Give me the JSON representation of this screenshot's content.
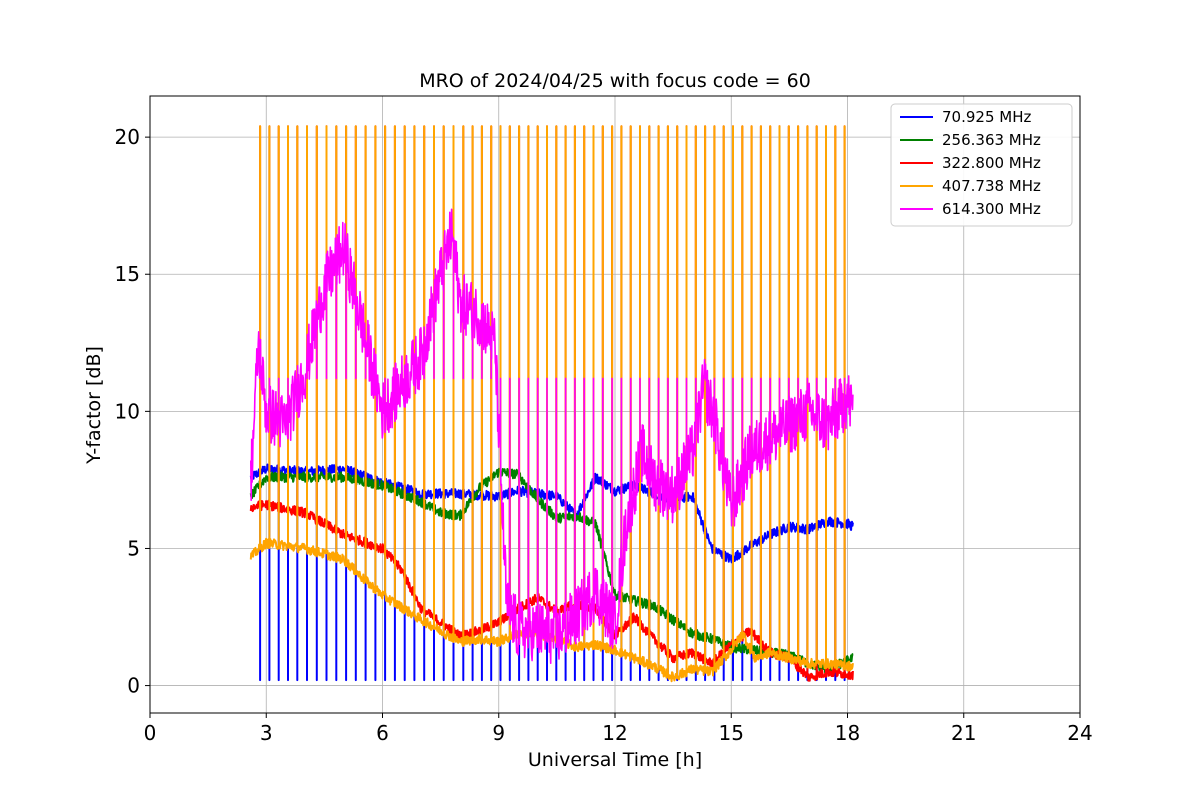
{
  "chart_data": {
    "type": "line",
    "title": "MRO of 2024/04/25 with focus code = 60",
    "xlabel": "Universal Time [h]",
    "ylabel": "Y-factor [dB]",
    "xlim": [
      0,
      24
    ],
    "ylim": [
      -1,
      21.5
    ],
    "xticks": [
      0,
      3,
      6,
      9,
      12,
      15,
      18,
      21,
      24
    ],
    "yticks": [
      0,
      5,
      10,
      15,
      20
    ],
    "grid": true,
    "legend_position": "top-right",
    "series": [
      {
        "name": " 70.925 MHz",
        "color": "#0000ff",
        "x": [
          2.6,
          3.0,
          4.0,
          5.0,
          6.0,
          7.0,
          8.0,
          9.0,
          9.5,
          10.0,
          10.5,
          11.0,
          11.5,
          12.0,
          12.5,
          13.0,
          13.5,
          14.0,
          14.5,
          15.0,
          15.5,
          16.0,
          16.5,
          17.0,
          17.5,
          18.0,
          18.15
        ],
        "y": [
          7.6,
          7.9,
          7.8,
          7.9,
          7.4,
          7.0,
          7.0,
          6.9,
          7.1,
          7.0,
          6.9,
          6.2,
          7.6,
          7.1,
          7.3,
          7.0,
          6.8,
          6.9,
          5.0,
          4.6,
          5.1,
          5.5,
          5.8,
          5.7,
          6.0,
          5.9,
          5.8
        ],
        "spikes_low": 0.2
      },
      {
        "name": " 256.363 MHz",
        "color": "#008000",
        "x": [
          2.6,
          3.0,
          4.0,
          5.0,
          6.0,
          7.0,
          7.5,
          8.0,
          8.5,
          9.0,
          9.5,
          10.0,
          10.5,
          11.0,
          11.5,
          12.0,
          12.5,
          13.0,
          13.5,
          14.0,
          14.5,
          15.0,
          15.5,
          16.0,
          16.5,
          17.0,
          17.5,
          18.15
        ],
        "y": [
          6.9,
          7.6,
          7.6,
          7.6,
          7.3,
          6.7,
          6.3,
          6.2,
          7.2,
          7.8,
          7.7,
          6.8,
          6.1,
          6.2,
          5.9,
          3.3,
          3.1,
          2.9,
          2.4,
          1.9,
          1.7,
          1.4,
          1.3,
          1.2,
          1.1,
          0.8,
          0.6,
          1.0
        ]
      },
      {
        "name": " 322.800 MHz",
        "color": "#ff0000",
        "x": [
          2.6,
          3.0,
          4.0,
          5.0,
          6.0,
          6.5,
          7.0,
          7.5,
          8.0,
          8.5,
          9.0,
          9.5,
          10.0,
          10.5,
          11.0,
          11.5,
          12.0,
          12.5,
          13.0,
          13.5,
          14.0,
          14.5,
          15.0,
          15.5,
          16.0,
          16.5,
          17.0,
          17.5,
          18.15
        ],
        "y": [
          6.5,
          6.6,
          6.3,
          5.5,
          5.0,
          4.2,
          2.8,
          2.3,
          1.8,
          2.0,
          2.3,
          2.8,
          3.2,
          2.7,
          3.0,
          2.8,
          1.8,
          2.5,
          1.7,
          1.0,
          1.2,
          0.8,
          1.5,
          2.0,
          1.2,
          1.0,
          0.3,
          0.5,
          0.4
        ],
        "spikes_high": 20.4
      },
      {
        "name": " 407.738 MHz",
        "color": "#ffa500",
        "x": [
          2.6,
          3.0,
          3.5,
          4.0,
          5.0,
          5.5,
          6.0,
          7.0,
          7.5,
          8.0,
          8.5,
          9.0,
          9.5,
          10.0,
          10.5,
          11.0,
          11.5,
          12.0,
          12.5,
          13.0,
          13.5,
          14.0,
          14.5,
          15.0,
          15.3,
          15.6,
          16.0,
          16.5,
          17.0,
          17.5,
          18.15
        ],
        "y": [
          4.7,
          5.2,
          5.1,
          5.0,
          4.6,
          3.9,
          3.3,
          2.4,
          2.0,
          1.6,
          1.7,
          1.6,
          1.9,
          1.9,
          1.7,
          1.4,
          1.5,
          1.3,
          1.0,
          0.7,
          0.3,
          0.6,
          0.5,
          1.3,
          1.9,
          1.0,
          1.2,
          1.0,
          0.8,
          0.8,
          0.7
        ],
        "spikes_high": 20.4,
        "spikes_mid": 11.2
      },
      {
        "name": " 614.300 MHz",
        "color": "#ff00ff",
        "x": [
          2.6,
          2.8,
          3.0,
          3.5,
          4.0,
          4.5,
          5.0,
          5.5,
          6.0,
          6.5,
          7.0,
          7.5,
          7.8,
          8.0,
          8.5,
          8.9,
          9.2,
          9.5,
          10.0,
          10.5,
          11.0,
          11.5,
          12.0,
          12.3,
          12.7,
          13.0,
          13.5,
          14.0,
          14.3,
          14.6,
          15.0,
          15.5,
          16.0,
          16.5,
          17.0,
          17.5,
          18.0,
          18.15
        ],
        "y": [
          7.5,
          12.5,
          10.0,
          9.5,
          11.5,
          14.5,
          16.0,
          13.0,
          10.0,
          11.0,
          12.0,
          15.0,
          16.5,
          14.0,
          13.5,
          12.5,
          3.0,
          2.0,
          2.0,
          1.8,
          2.5,
          3.5,
          2.2,
          6.0,
          8.5,
          7.5,
          7.0,
          8.5,
          11.0,
          9.5,
          6.5,
          8.5,
          9.0,
          9.5,
          10.0,
          9.5,
          10.5,
          10.0
        ],
        "spikes_mid": 11.2
      }
    ]
  }
}
